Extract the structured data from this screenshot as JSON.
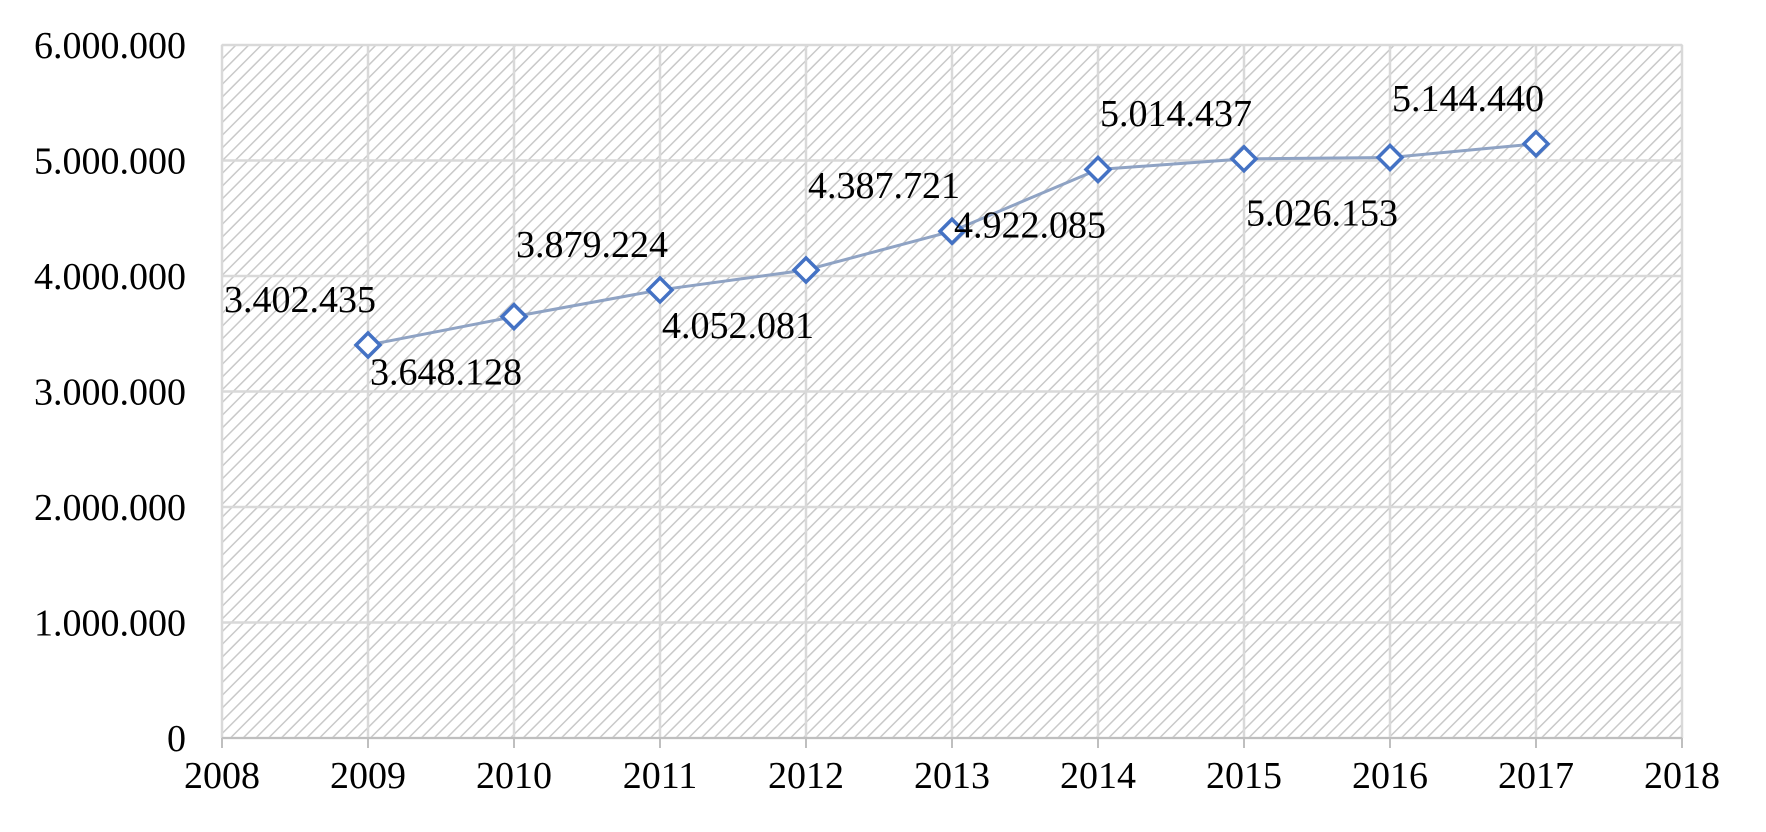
{
  "chart_data": {
    "type": "line",
    "title": "",
    "xlabel": "",
    "ylabel": "",
    "x": [
      2009,
      2010,
      2011,
      2012,
      2013,
      2014,
      2015,
      2016,
      2017
    ],
    "series": [
      {
        "values": [
          3402435,
          3648128,
          3879224,
          4052081,
          4387721,
          4922085,
          5014437,
          5026153,
          5144440
        ],
        "data_labels": [
          "3.402.435",
          "3.648.128",
          "3.879.224",
          "4.052.081",
          "4.387.721",
          "4.922.085",
          "5.014.437",
          "5.026.153",
          "5.144.440"
        ],
        "label_side": [
          "above",
          "below",
          "above",
          "below",
          "above",
          "below",
          "above",
          "below",
          "above"
        ],
        "color": "#4472c4",
        "line_color": "#8fa3c4",
        "marker": "diamond-open"
      }
    ],
    "xlim": [
      2008,
      2018
    ],
    "ylim": [
      0,
      6000000
    ],
    "x_ticks": [
      "2008",
      "2009",
      "2010",
      "2011",
      "2012",
      "2013",
      "2014",
      "2015",
      "2016",
      "2017",
      "2018"
    ],
    "y_ticks": [
      "0",
      "1.000.000",
      "2.000.000",
      "3.000.000",
      "4.000.000",
      "5.000.000",
      "6.000.000"
    ],
    "y_tick_values": [
      0,
      1000000,
      2000000,
      3000000,
      4000000,
      5000000,
      6000000
    ],
    "grid": true,
    "legend": "none",
    "plot_background": "hatched-gray"
  }
}
